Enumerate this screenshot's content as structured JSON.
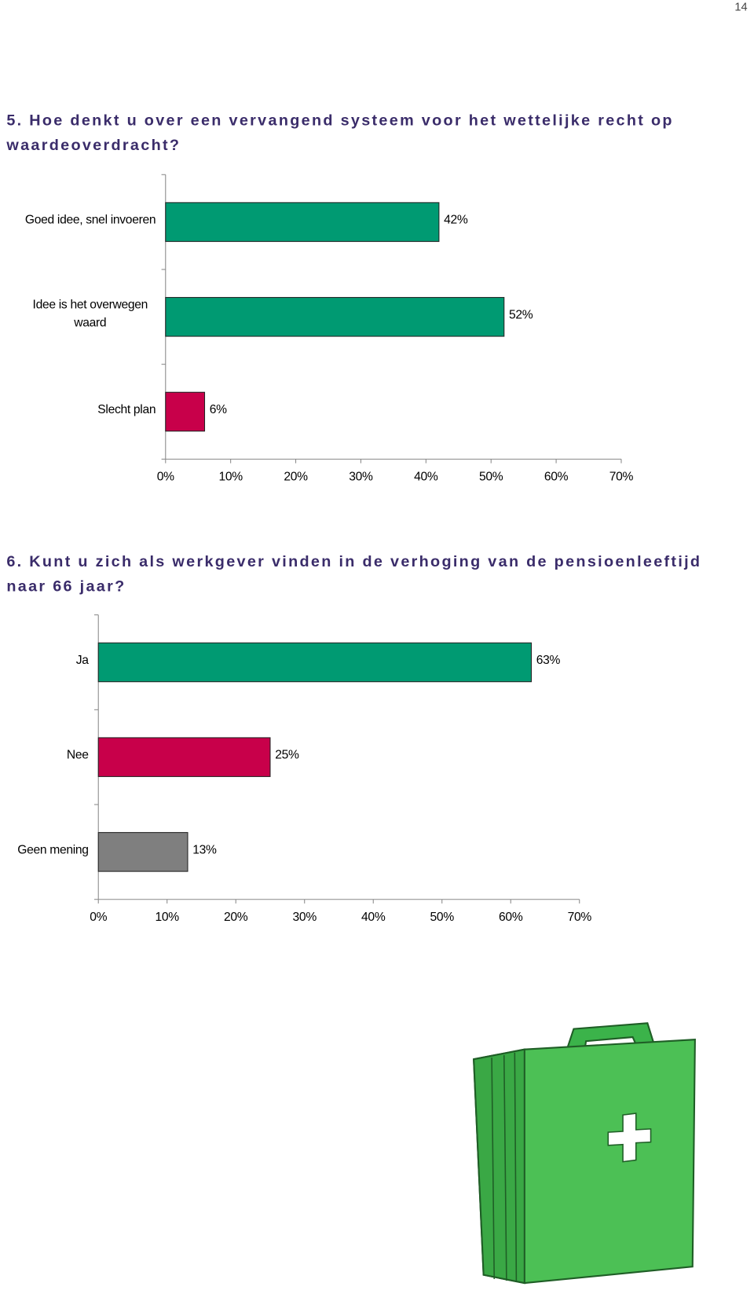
{
  "page_number": "14",
  "chart_data": [
    {
      "type": "barh",
      "title": "5. Hoe denkt u over een vervangend systeem voor het wettelijke recht op waardeoverdracht?",
      "categories": [
        "Goed idee, snel invoeren",
        "Idee is het overwegen waard",
        "Slecht plan"
      ],
      "values": [
        42,
        52,
        6
      ],
      "value_labels": [
        "42%",
        "52%",
        "6%"
      ],
      "colors": [
        "#009a72",
        "#009a72",
        "#c8004a"
      ],
      "xlim": [
        0,
        70
      ],
      "xticks": [
        {
          "value": 0,
          "label": "0%"
        },
        {
          "value": 10,
          "label": "10%"
        },
        {
          "value": 20,
          "label": "20%"
        },
        {
          "value": 30,
          "label": "30%"
        },
        {
          "value": 40,
          "label": "40%"
        },
        {
          "value": 50,
          "label": "50%"
        },
        {
          "value": 60,
          "label": "60%"
        },
        {
          "value": 70,
          "label": "70%"
        }
      ]
    },
    {
      "type": "barh",
      "title": "6. Kunt u zich als werkgever vinden in de verhoging van de pensioenleeftijd naar 66 jaar?",
      "categories": [
        "Ja",
        "Nee",
        "Geen mening"
      ],
      "values": [
        63,
        25,
        13
      ],
      "value_labels": [
        "63%",
        "25%",
        "13%"
      ],
      "colors": [
        "#009a72",
        "#c8004a",
        "#7f7f7f"
      ],
      "xlim": [
        0,
        70
      ],
      "xticks": [
        {
          "value": 0,
          "label": "0%"
        },
        {
          "value": 10,
          "label": "10%"
        },
        {
          "value": 20,
          "label": "20%"
        },
        {
          "value": 30,
          "label": "30%"
        },
        {
          "value": 40,
          "label": "40%"
        },
        {
          "value": 50,
          "label": "50%"
        },
        {
          "value": 60,
          "label": "60%"
        },
        {
          "value": 70,
          "label": "70%"
        }
      ]
    }
  ]
}
